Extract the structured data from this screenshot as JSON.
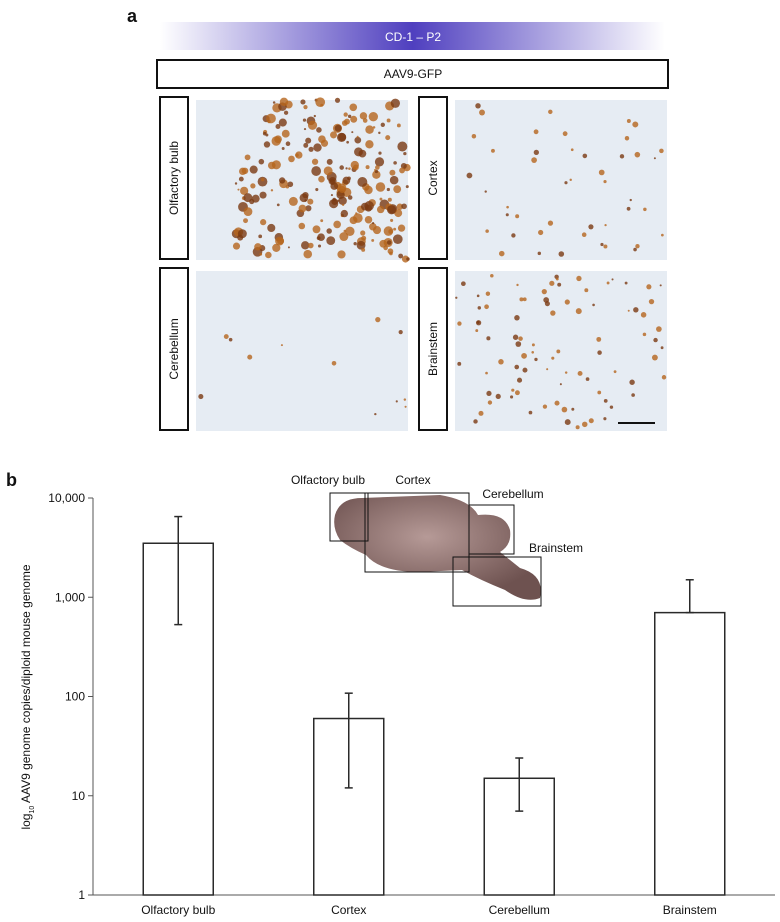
{
  "panel_a": {
    "label": "a",
    "header": "CD-1 – P2",
    "vector": "AAV9-GFP",
    "regions": [
      "Olfactory bulb",
      "Cortex",
      "Cerebellum",
      "Brainstem"
    ]
  },
  "inset": {
    "labels": [
      "Olfactory bulb",
      "Cortex",
      "Cerebellum",
      "Brainstem"
    ]
  },
  "chart_data": {
    "type": "bar",
    "panel_label": "b",
    "ylabel": {
      "prefix": "log",
      "subscript": "10",
      "text": " AAV9 genome copies/diploid mouse genome"
    },
    "categories": [
      "Olfactory bulb",
      "Cortex",
      "Cerebellum",
      "Brainstem"
    ],
    "values": [
      3500,
      60,
      15,
      700
    ],
    "upper": [
      6500,
      108,
      24,
      1500
    ],
    "lower": [
      530,
      12,
      7,
      700
    ],
    "color": "#ffffff",
    "edge_color": "#2a2a2a",
    "log_scale": true,
    "ylim": [
      1,
      10000
    ],
    "yticks": [
      1,
      10,
      100,
      {
        "value": 1000,
        "label": "1,000"
      },
      {
        "value": 10000,
        "label": "10,000"
      }
    ]
  }
}
